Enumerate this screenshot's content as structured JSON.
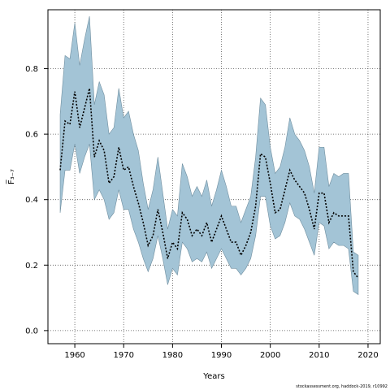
{
  "chart_data": {
    "type": "line",
    "xlabel": "Years",
    "ylabel": "F̅₃₋₇",
    "caption": "stockassessment.org, haddock-2019, r10992",
    "xlim": [
      1954.5,
      2022.5
    ],
    "ylim": [
      -0.04,
      0.98
    ],
    "x_ticks": [
      1960,
      1970,
      1980,
      1990,
      2000,
      2010,
      2020
    ],
    "x_tick_labels": [
      "1960",
      "1970",
      "1980",
      "1990",
      "2000",
      "2010",
      "2020"
    ],
    "y_ticks": [
      0.0,
      0.2,
      0.4,
      0.6,
      0.8
    ],
    "y_tick_labels": [
      "0.0",
      "0.2",
      "0.4",
      "0.6",
      "0.8"
    ],
    "grid": true,
    "colors": {
      "band": "#a3c4d6",
      "band_edge": "#6f8e9f",
      "line": "#000000",
      "grid": "#555555"
    },
    "x": [
      1957,
      1958,
      1959,
      1960,
      1961,
      1962,
      1963,
      1964,
      1965,
      1966,
      1967,
      1968,
      1969,
      1970,
      1971,
      1972,
      1973,
      1974,
      1975,
      1976,
      1977,
      1978,
      1979,
      1980,
      1981,
      1982,
      1983,
      1984,
      1985,
      1986,
      1987,
      1988,
      1989,
      1990,
      1991,
      1992,
      1993,
      1994,
      1995,
      1996,
      1997,
      1998,
      1999,
      2000,
      2001,
      2002,
      2003,
      2004,
      2005,
      2006,
      2007,
      2008,
      2009,
      2010,
      2011,
      2012,
      2013,
      2014,
      2015,
      2016,
      2017,
      2018
    ],
    "series": [
      {
        "name": "",
        "role": "estimate",
        "values": [
          0.49,
          0.64,
          0.63,
          0.73,
          0.62,
          0.68,
          0.74,
          0.53,
          0.58,
          0.55,
          0.45,
          0.47,
          0.56,
          0.49,
          0.5,
          0.44,
          0.39,
          0.33,
          0.26,
          0.29,
          0.37,
          0.3,
          0.22,
          0.27,
          0.25,
          0.36,
          0.34,
          0.29,
          0.31,
          0.29,
          0.33,
          0.27,
          0.31,
          0.35,
          0.31,
          0.27,
          0.27,
          0.23,
          0.26,
          0.3,
          0.38,
          0.54,
          0.53,
          0.45,
          0.36,
          0.37,
          0.43,
          0.49,
          0.46,
          0.44,
          0.42,
          0.37,
          0.31,
          0.42,
          0.42,
          0.33,
          0.36,
          0.35,
          0.35,
          0.35,
          0.18,
          0.16
        ]
      },
      {
        "name": "",
        "role": "lower",
        "values": [
          0.36,
          0.49,
          0.49,
          0.57,
          0.48,
          0.53,
          0.57,
          0.4,
          0.43,
          0.4,
          0.34,
          0.36,
          0.43,
          0.37,
          0.37,
          0.31,
          0.27,
          0.22,
          0.18,
          0.22,
          0.29,
          0.22,
          0.14,
          0.19,
          0.17,
          0.27,
          0.25,
          0.21,
          0.22,
          0.21,
          0.24,
          0.19,
          0.22,
          0.25,
          0.22,
          0.19,
          0.19,
          0.17,
          0.19,
          0.22,
          0.29,
          0.41,
          0.41,
          0.32,
          0.28,
          0.29,
          0.33,
          0.39,
          0.35,
          0.34,
          0.31,
          0.27,
          0.23,
          0.33,
          0.32,
          0.25,
          0.27,
          0.26,
          0.26,
          0.25,
          0.12,
          0.11
        ]
      },
      {
        "name": "",
        "role": "upper",
        "values": [
          0.66,
          0.84,
          0.83,
          0.94,
          0.81,
          0.89,
          0.96,
          0.69,
          0.76,
          0.72,
          0.6,
          0.62,
          0.74,
          0.65,
          0.67,
          0.6,
          0.55,
          0.45,
          0.37,
          0.43,
          0.53,
          0.42,
          0.31,
          0.37,
          0.35,
          0.51,
          0.47,
          0.41,
          0.44,
          0.41,
          0.46,
          0.38,
          0.43,
          0.49,
          0.44,
          0.38,
          0.38,
          0.33,
          0.37,
          0.41,
          0.53,
          0.71,
          0.69,
          0.56,
          0.48,
          0.5,
          0.56,
          0.65,
          0.6,
          0.58,
          0.55,
          0.5,
          0.42,
          0.56,
          0.56,
          0.44,
          0.48,
          0.47,
          0.48,
          0.48,
          0.24,
          0.23
        ]
      }
    ]
  }
}
